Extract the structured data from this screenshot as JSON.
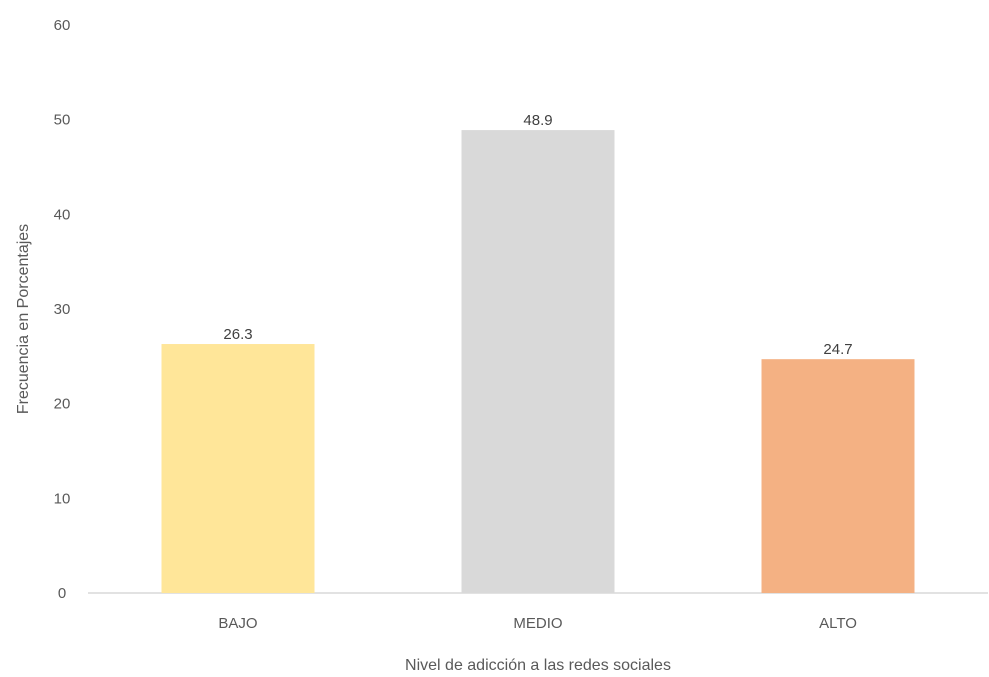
{
  "chart_data": {
    "type": "bar",
    "categories": [
      "BAJO",
      "MEDIO",
      "ALTO"
    ],
    "values": [
      26.3,
      48.9,
      24.7
    ],
    "data_labels": [
      "26.3",
      "48.9",
      "24.7"
    ],
    "colors": [
      "#FFE699",
      "#D9D9D9",
      "#F4B183"
    ],
    "xlabel": "Nivel de adicción a las redes sociales",
    "ylabel": "Frecuencia en Porcentajes",
    "ylim": [
      0,
      60
    ],
    "yticks": [
      "0",
      "10",
      "20",
      "30",
      "40",
      "50",
      "60"
    ],
    "grid": false,
    "legend": "none",
    "axis_color": "#D9D9D9"
  }
}
